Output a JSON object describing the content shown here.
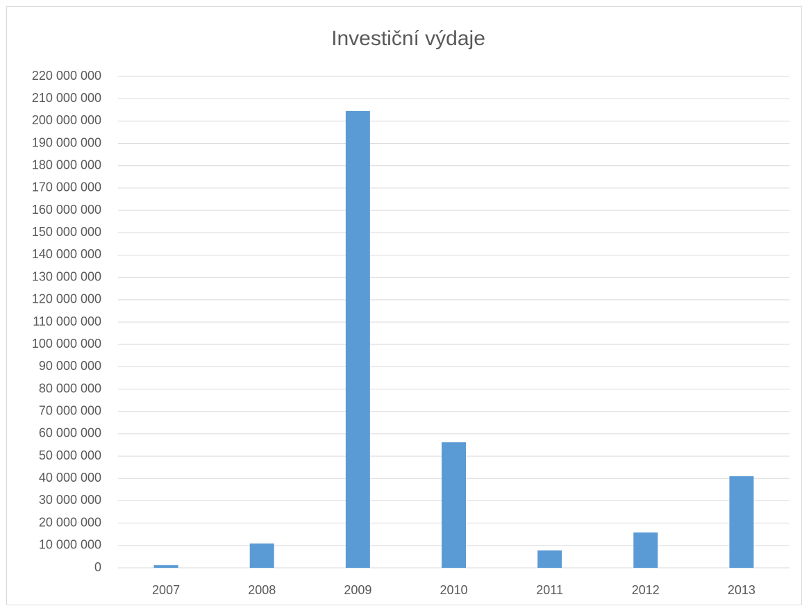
{
  "chart_data": {
    "type": "bar",
    "title": "Investiční výdaje",
    "categories": [
      "2007",
      "2008",
      "2009",
      "2010",
      "2011",
      "2012",
      "2013"
    ],
    "values": [
      1200000,
      10900000,
      204500000,
      56200000,
      7800000,
      15800000,
      41000000
    ],
    "color": "#5b9bd5",
    "ylim": [
      0,
      220000000
    ],
    "yticks": [
      0,
      {
        "value": 10000000,
        "label": "10 000 000"
      },
      {
        "value": 20000000,
        "label": "20 000 000"
      },
      {
        "value": 30000000,
        "label": "30 000 000"
      },
      {
        "value": 40000000,
        "label": "40 000 000"
      },
      {
        "value": 50000000,
        "label": "50 000 000"
      },
      {
        "value": 60000000,
        "label": "60 000 000"
      },
      {
        "value": 70000000,
        "label": "70 000 000"
      },
      {
        "value": 80000000,
        "label": "80 000 000"
      },
      {
        "value": 90000000,
        "label": "90 000 000"
      },
      {
        "value": 100000000,
        "label": "100 000 000"
      },
      {
        "value": 110000000,
        "label": "110 000 000"
      },
      {
        "value": 120000000,
        "label": "120 000 000"
      },
      {
        "value": 130000000,
        "label": "130 000 000"
      },
      {
        "value": 140000000,
        "label": "140 000 000"
      },
      {
        "value": 150000000,
        "label": "150 000 000"
      },
      {
        "value": 160000000,
        "label": "160 000 000"
      },
      {
        "value": 170000000,
        "label": "170 000 000"
      },
      {
        "value": 180000000,
        "label": "180 000 000"
      },
      {
        "value": 190000000,
        "label": "190 000 000"
      },
      {
        "value": 200000000,
        "label": "200 000 000"
      },
      {
        "value": 210000000,
        "label": "210 000 000"
      },
      {
        "value": 220000000,
        "label": "220 000 000"
      }
    ],
    "grid": true
  }
}
